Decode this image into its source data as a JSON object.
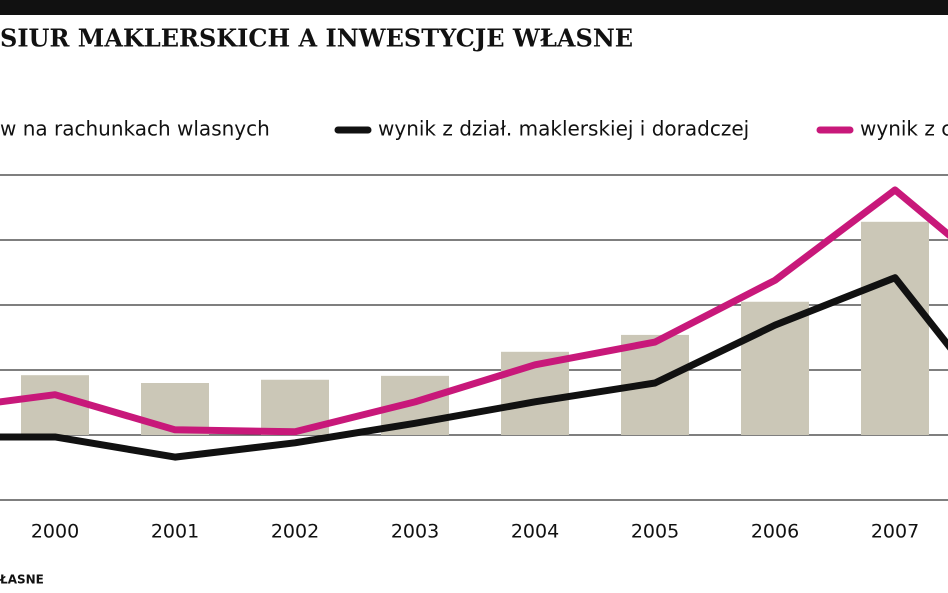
{
  "chart_data": {
    "type": "bar-line",
    "title": "SIUR MAKLERSKICH A INWESTYCJE WŁASNE",
    "source": "ŁASNE",
    "categories": [
      null,
      "2000",
      "2001",
      "2002",
      "2003",
      "2004",
      "2005",
      "2006",
      "2007",
      null
    ],
    "series": [
      {
        "name": "w na rachunkach wlasnych",
        "kind": "bar",
        "color": "#cbc7b7",
        "values": [
          null,
          0.92,
          0.8,
          0.85,
          0.91,
          1.28,
          1.54,
          2.05,
          3.28,
          null
        ]
      },
      {
        "name": "wynik z dział. maklerskiej i doradczej",
        "kind": "line",
        "color": "#111111",
        "values": [
          -0.03,
          -0.03,
          -0.34,
          -0.12,
          0.18,
          0.51,
          0.8,
          1.69,
          2.42,
          0.08
        ]
      },
      {
        "name": "wynik z c",
        "kind": "line",
        "color": "#c8187a",
        "values": [
          0.38,
          0.62,
          0.08,
          0.05,
          0.51,
          1.08,
          1.43,
          2.38,
          3.77,
          2.23
        ]
      }
    ],
    "ylim": [
      -1,
      4
    ],
    "yticks": [
      -1,
      0,
      1,
      2,
      3,
      4
    ],
    "grid": true
  }
}
